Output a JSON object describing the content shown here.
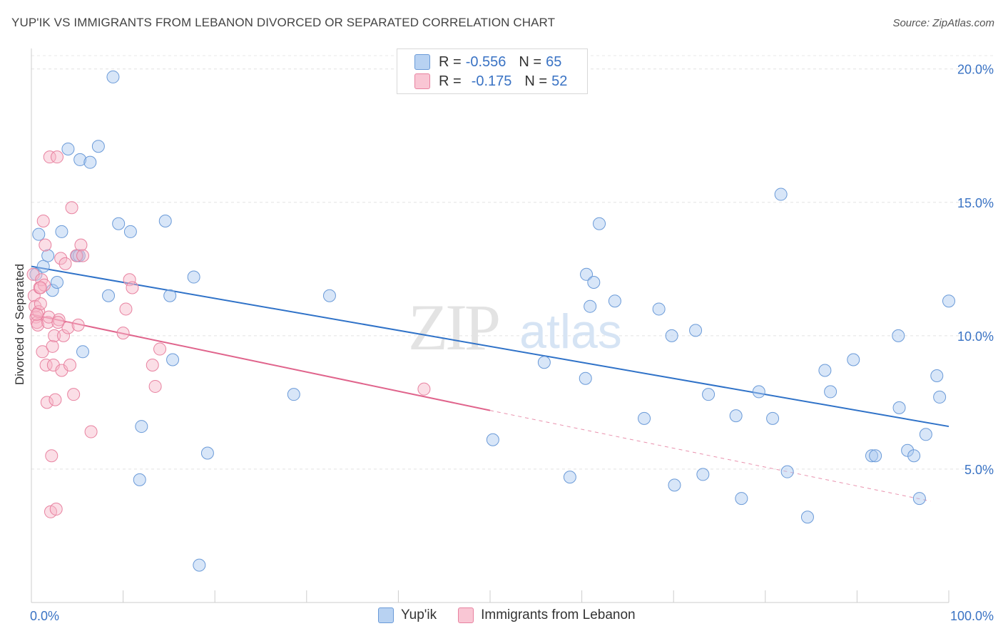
{
  "header": {
    "title": "YUP'IK VS IMMIGRANTS FROM LEBANON DIVORCED OR SEPARATED CORRELATION CHART",
    "source": "Source: ZipAtlas.com"
  },
  "watermark": {
    "zip": "ZIP",
    "atlas": "atlas"
  },
  "legend": {
    "rows": [
      {
        "r_label": "R =",
        "r_value": "-0.556",
        "n_label": "N =",
        "n_value": "65"
      },
      {
        "r_label": "R =",
        "r_value": "-0.175",
        "n_label": "N =",
        "n_value": "52"
      }
    ]
  },
  "chart_data": {
    "type": "scatter",
    "ylabel": "Divorced or Separated",
    "xlim": [
      0,
      100
    ],
    "ylim": [
      0,
      20.5
    ],
    "x_tick_labels": [
      "0.0%",
      "100.0%"
    ],
    "y_ticks": [
      5,
      10,
      15,
      20
    ],
    "y_tick_labels": [
      "5.0%",
      "10.0%",
      "15.0%",
      "20.0%"
    ],
    "grid": true,
    "colors": {
      "blue_fill": "#a8c8f0",
      "blue_stroke": "#6a9ad8",
      "blue_line": "#2f72c8",
      "pink_fill": "#f7b6c8",
      "pink_stroke": "#e882a0",
      "pink_line": "#e0648c"
    },
    "series": [
      {
        "name": "Yup'ik",
        "color": "#a8c8f0",
        "points": [
          [
            0.5,
            12.3
          ],
          [
            0.8,
            13.8
          ],
          [
            1.3,
            12.6
          ],
          [
            1.8,
            13.0
          ],
          [
            2.3,
            11.7
          ],
          [
            2.8,
            12.0
          ],
          [
            3.3,
            13.9
          ],
          [
            4.0,
            17.0
          ],
          [
            5.0,
            13.0
          ],
          [
            5.2,
            13.0
          ],
          [
            5.3,
            16.6
          ],
          [
            5.6,
            9.4
          ],
          [
            6.4,
            16.5
          ],
          [
            7.3,
            17.1
          ],
          [
            8.4,
            11.5
          ],
          [
            8.9,
            19.7
          ],
          [
            9.5,
            14.2
          ],
          [
            10.8,
            13.9
          ],
          [
            11.8,
            4.6
          ],
          [
            12.0,
            6.6
          ],
          [
            14.6,
            14.3
          ],
          [
            15.1,
            11.5
          ],
          [
            15.4,
            9.1
          ],
          [
            17.7,
            12.2
          ],
          [
            18.3,
            1.4
          ],
          [
            19.2,
            5.6
          ],
          [
            32.5,
            11.5
          ],
          [
            28.6,
            7.8
          ],
          [
            50.3,
            6.1
          ],
          [
            55.9,
            9.0
          ],
          [
            58.7,
            4.7
          ],
          [
            60.4,
            8.4
          ],
          [
            60.5,
            12.3
          ],
          [
            60.9,
            11.1
          ],
          [
            61.3,
            12.0
          ],
          [
            61.9,
            14.2
          ],
          [
            63.6,
            11.3
          ],
          [
            66.8,
            6.9
          ],
          [
            68.4,
            11.0
          ],
          [
            69.8,
            10.0
          ],
          [
            70.1,
            4.4
          ],
          [
            72.4,
            10.2
          ],
          [
            73.2,
            4.8
          ],
          [
            73.8,
            7.8
          ],
          [
            76.8,
            7.0
          ],
          [
            77.4,
            3.9
          ],
          [
            79.3,
            7.9
          ],
          [
            80.8,
            6.9
          ],
          [
            81.7,
            15.3
          ],
          [
            82.4,
            4.9
          ],
          [
            84.6,
            3.2
          ],
          [
            86.5,
            8.7
          ],
          [
            87.1,
            7.9
          ],
          [
            89.6,
            9.1
          ],
          [
            91.6,
            5.5
          ],
          [
            92.0,
            5.5
          ],
          [
            94.5,
            10.0
          ],
          [
            94.6,
            7.3
          ],
          [
            95.5,
            5.7
          ],
          [
            96.2,
            5.5
          ],
          [
            96.8,
            3.9
          ],
          [
            97.5,
            6.3
          ],
          [
            98.7,
            8.5
          ],
          [
            99.0,
            7.7
          ],
          [
            100.0,
            11.3
          ]
        ]
      },
      {
        "name": "Immigrants from Lebanon",
        "color": "#f7b6c8",
        "points": [
          [
            0.2,
            12.3
          ],
          [
            0.3,
            11.5
          ],
          [
            0.4,
            11.1
          ],
          [
            0.5,
            10.7
          ],
          [
            0.6,
            10.5
          ],
          [
            0.7,
            10.4
          ],
          [
            0.8,
            10.9
          ],
          [
            0.9,
            11.8
          ],
          [
            1.0,
            11.2
          ],
          [
            1.1,
            12.1
          ],
          [
            1.2,
            9.4
          ],
          [
            1.3,
            14.3
          ],
          [
            1.4,
            11.9
          ],
          [
            1.5,
            13.4
          ],
          [
            1.6,
            8.9
          ],
          [
            1.7,
            7.5
          ],
          [
            1.8,
            10.5
          ],
          [
            1.9,
            10.7
          ],
          [
            2.0,
            16.7
          ],
          [
            2.1,
            3.4
          ],
          [
            2.2,
            5.5
          ],
          [
            2.3,
            9.6
          ],
          [
            2.4,
            8.9
          ],
          [
            2.5,
            10.0
          ],
          [
            2.6,
            7.6
          ],
          [
            2.7,
            3.5
          ],
          [
            2.8,
            16.7
          ],
          [
            3.0,
            10.6
          ],
          [
            3.2,
            12.9
          ],
          [
            3.3,
            8.7
          ],
          [
            3.5,
            10.0
          ],
          [
            3.7,
            12.7
          ],
          [
            4.0,
            10.3
          ],
          [
            4.2,
            8.9
          ],
          [
            4.4,
            14.8
          ],
          [
            4.6,
            7.8
          ],
          [
            4.9,
            13.0
          ],
          [
            5.1,
            10.4
          ],
          [
            5.4,
            13.4
          ],
          [
            5.6,
            13.0
          ],
          [
            6.5,
            6.4
          ],
          [
            10.0,
            10.1
          ],
          [
            10.3,
            11.0
          ],
          [
            10.7,
            12.1
          ],
          [
            11.0,
            11.8
          ],
          [
            13.2,
            8.9
          ],
          [
            13.5,
            8.1
          ],
          [
            14.0,
            9.5
          ],
          [
            42.8,
            8.0
          ],
          [
            1.0,
            11.8
          ],
          [
            2.9,
            10.5
          ],
          [
            0.6,
            10.8
          ]
        ]
      }
    ],
    "trendlines": [
      {
        "series": "Yup'ik",
        "from": [
          0,
          12.6
        ],
        "to": [
          100,
          6.6
        ]
      },
      {
        "series": "Immigrants from Lebanon",
        "solid_from": [
          0,
          10.8
        ],
        "solid_to": [
          50,
          7.2
        ],
        "dashed_to": [
          98,
          3.8
        ]
      }
    ]
  }
}
